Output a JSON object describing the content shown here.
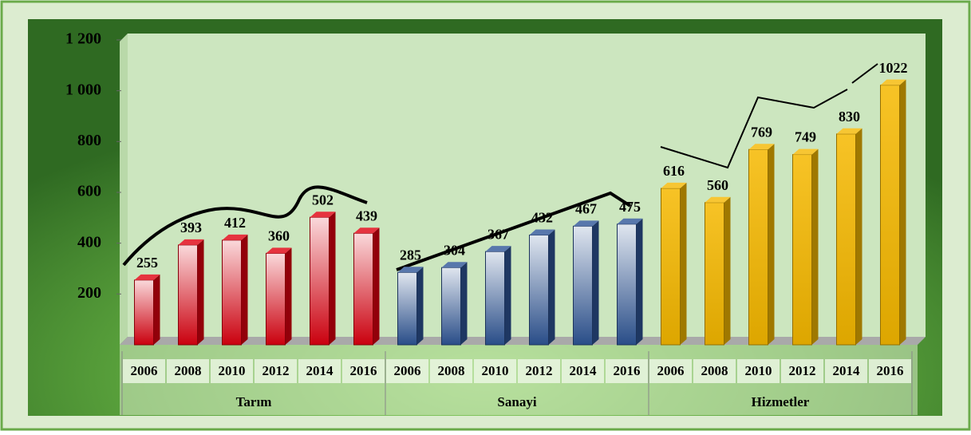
{
  "chart_data": {
    "type": "bar",
    "categories": [
      "2006",
      "2008",
      "2010",
      "2012",
      "2014",
      "2016"
    ],
    "series": [
      {
        "name": "Tarım",
        "color": "#e0000f",
        "values": [
          255,
          393,
          412,
          360,
          502,
          439
        ]
      },
      {
        "name": "Sanayi",
        "color": "#2e5597",
        "values": [
          285,
          304,
          367,
          432,
          467,
          475
        ]
      },
      {
        "name": "Hizmetler",
        "color": "#f5b800",
        "values": [
          616,
          560,
          769,
          749,
          830,
          1022
        ]
      }
    ],
    "ylim": [
      0,
      1200
    ],
    "yticks": [
      200,
      400,
      600,
      800,
      {
        "value": 1000,
        "label": "1 000"
      },
      {
        "value": 1200,
        "label": "1 200"
      }
    ]
  }
}
